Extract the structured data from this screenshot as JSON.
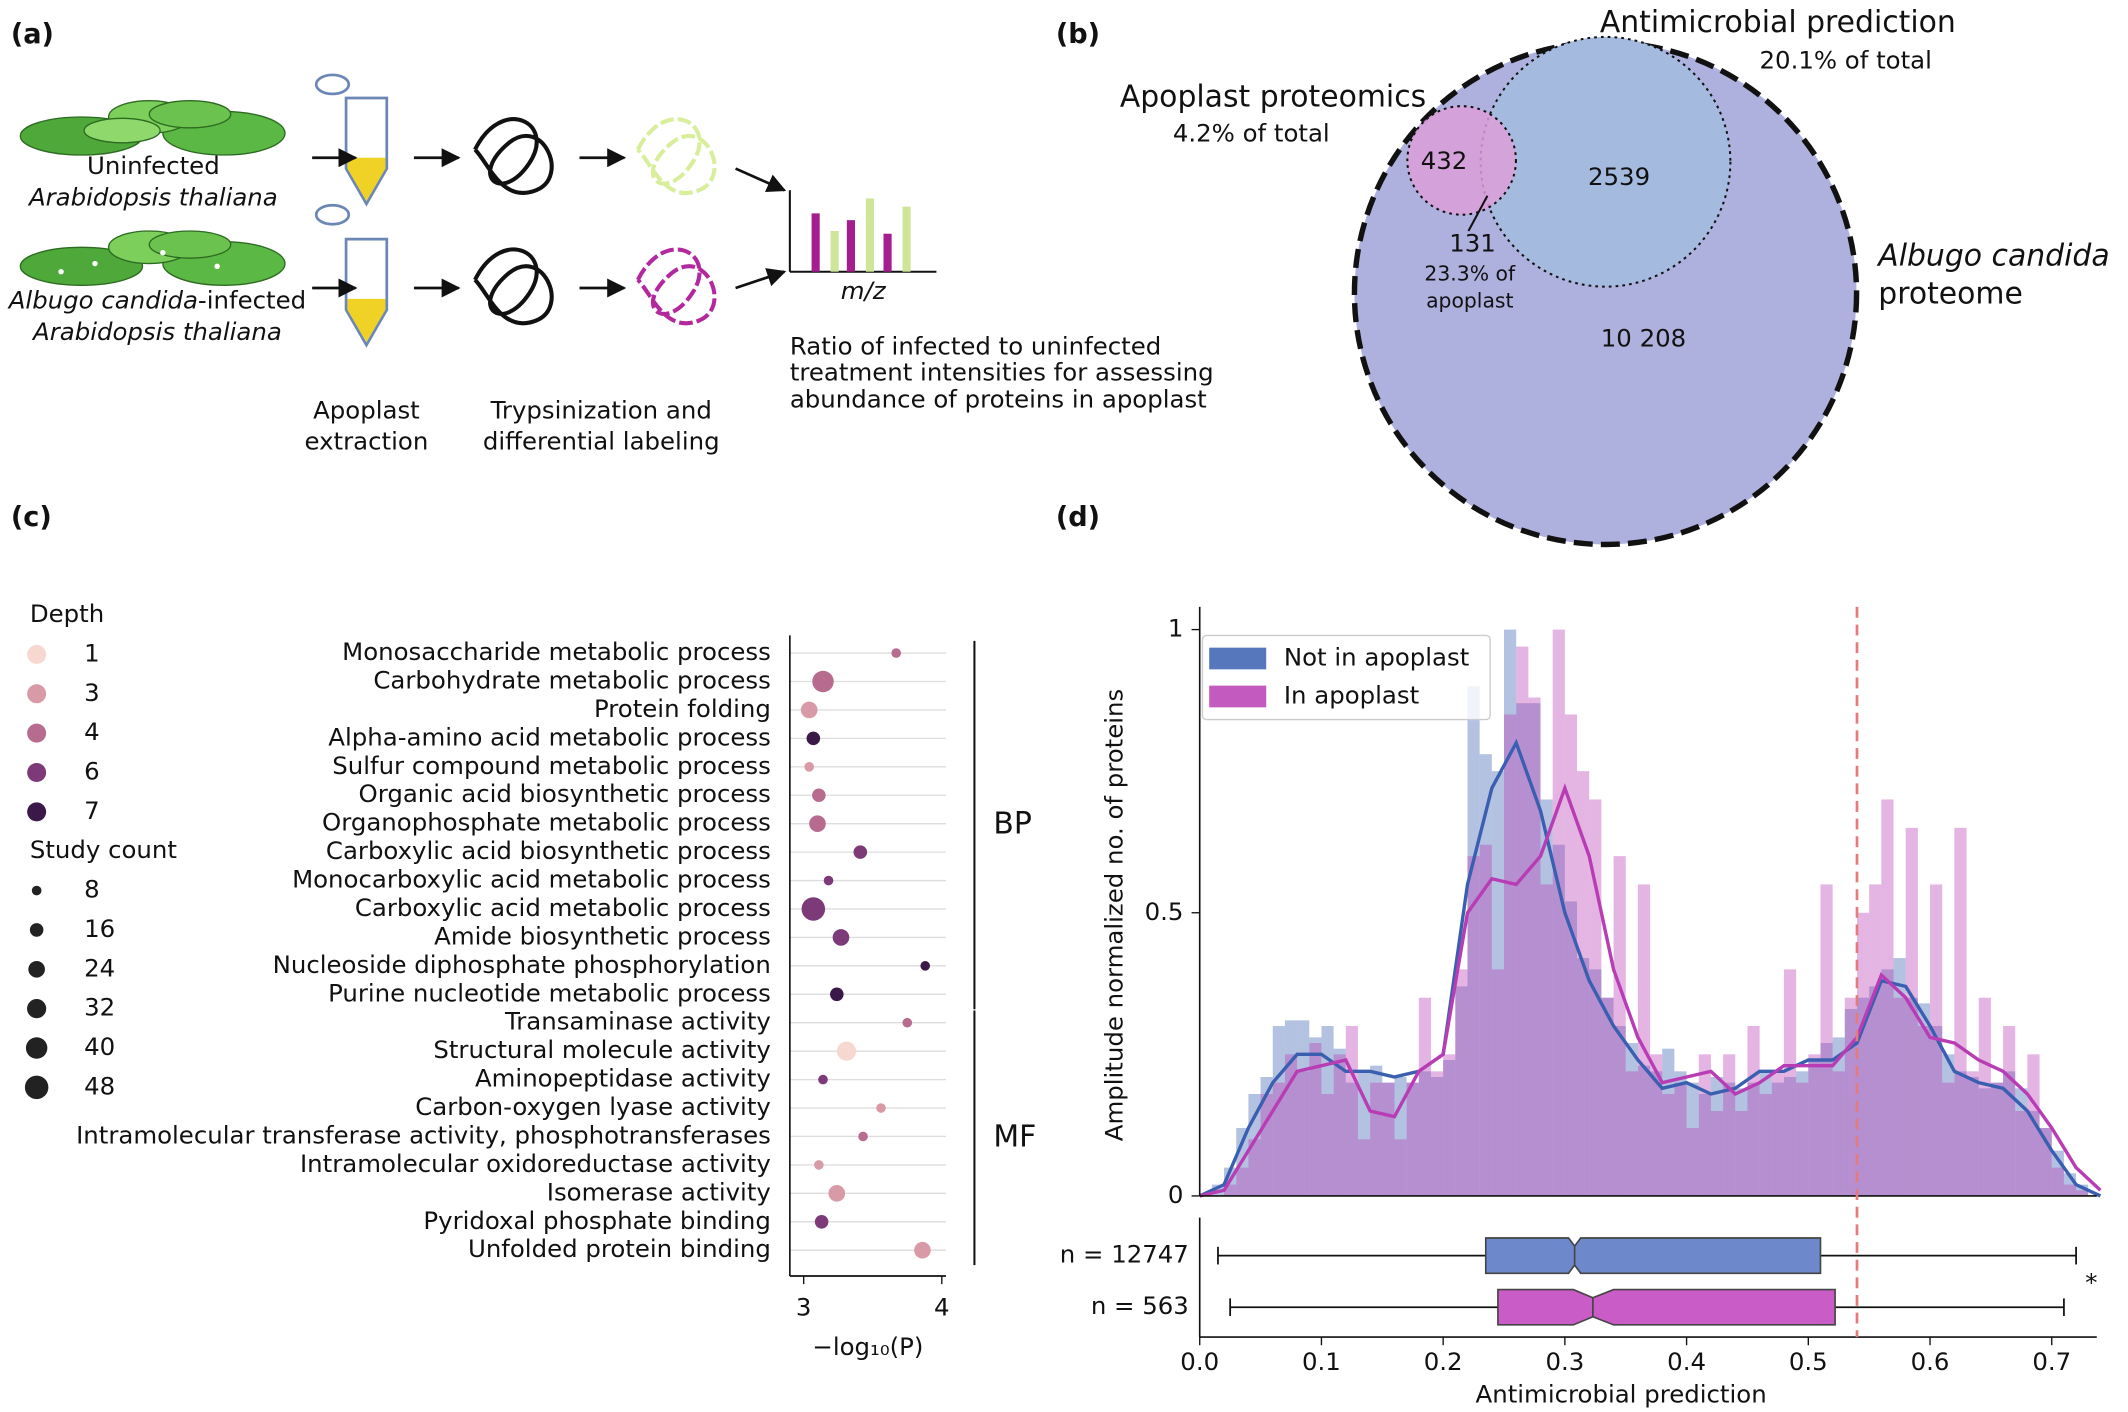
{
  "panel_labels": [
    "(a)",
    "(b)",
    "(c)",
    "(d)"
  ],
  "panel_a": {
    "uninfected": "Uninfected",
    "species": "Arabidopsis thaliana",
    "infected": {
      "italic": "Albugo candida",
      "rest": "-infected"
    },
    "species_2": "Arabidopsis thaliana",
    "step_1": [
      "Apoplast",
      "extraction"
    ],
    "step_2": [
      "Trypsinization and",
      "differential labeling"
    ],
    "axis_label": "m/z",
    "description": [
      "Ratio of infected to uninfected",
      "treatment intensities for assessing",
      "abundance of proteins in apoplast"
    ]
  },
  "panel_b": {
    "antimicrobial": "Antimicrobial prediction",
    "antimicrobial_share": "20.1% of total",
    "apoplast": "Apoplast proteomics",
    "apoplast_share": "4.2% of total",
    "apoplast_only": "432",
    "antimicrobial_only": "2539",
    "overlap": "131",
    "overlap_share": [
      "23.3% of",
      "apoplast"
    ],
    "proteome": {
      "italic": "Albugo candida",
      "rest": "proteome"
    },
    "rest": "10 208"
  },
  "chart_data": [
    {
      "type": "dot",
      "categories": [
        "Monosaccharide metabolic process",
        "Carbohydrate metabolic process",
        "Protein folding",
        "Alpha-amino acid metabolic process",
        "Sulfur compound metabolic process",
        "Organic acid biosynthetic process",
        "Organophosphate metabolic process",
        "Carboxylic acid biosynthetic process",
        "Monocarboxylic acid metabolic process",
        "Carboxylic acid metabolic process",
        "Amide biosynthetic process",
        "Nucleoside diphosphate phosphorylation",
        "Purine nucleotide metabolic process",
        "Transaminase activity",
        "Structural molecule activity",
        "Aminopeptidase activity",
        "Carbon-oxygen lyase activity",
        "Intramolecular transferase activity, phosphotransferases",
        "Intramolecular oxidoreductase activity",
        "Isomerase activity",
        "Pyridoxal phosphate binding",
        "Unfolded protein binding"
      ],
      "category_groups": [
        "BP",
        "BP",
        "BP",
        "BP",
        "BP",
        "BP",
        "BP",
        "BP",
        "BP",
        "BP",
        "BP",
        "BP",
        "BP",
        "MF",
        "MF",
        "MF",
        "MF",
        "MF",
        "MF",
        "MF",
        "MF",
        "MF"
      ],
      "values": [
        3.67,
        3.14,
        3.04,
        3.07,
        3.04,
        3.11,
        3.1,
        3.41,
        3.18,
        3.07,
        3.27,
        3.88,
        3.24,
        3.75,
        3.31,
        3.14,
        3.56,
        3.43,
        3.11,
        3.24,
        3.13,
        3.86
      ],
      "depth": [
        4,
        4,
        3,
        7,
        3,
        4,
        4,
        6,
        6,
        6,
        6,
        7,
        7,
        4,
        1,
        6,
        3,
        4,
        3,
        3,
        6,
        3
      ],
      "study_count": [
        8,
        40,
        24,
        16,
        8,
        16,
        24,
        16,
        8,
        48,
        24,
        8,
        16,
        8,
        32,
        8,
        8,
        8,
        8,
        24,
        16,
        24
      ],
      "xlabel": "−log₁₀(P)",
      "xlim": [
        2.9,
        4.03
      ],
      "xticks": [
        3,
        4
      ],
      "grid": true,
      "legend_depth": {
        "title": "Depth",
        "values": [
          1,
          3,
          4,
          6,
          7
        ],
        "colors": [
          "#f6d8d0",
          "#d89aa6",
          "#b66b8f",
          "#7c3a79",
          "#3a1848"
        ]
      },
      "legend_size": {
        "title": "Study count",
        "values": [
          8,
          16,
          24,
          32,
          40,
          48
        ],
        "color": "#222222"
      }
    },
    {
      "type": "histogram",
      "xlabel": "Antimicrobial prediction",
      "ylabel": "Amplitude normalized no. of proteins",
      "xlim": [
        0,
        0.737
      ],
      "ylim": [
        0,
        1.04
      ],
      "xticks": [
        {
          "value": 0,
          "label": "0.0"
        },
        0.1,
        0.2,
        0.3,
        0.4,
        0.5,
        0.6,
        0.7
      ],
      "yticks": [
        0,
        0.5,
        1
      ],
      "threshold": 0.54,
      "threshold_color": "#e57b7b",
      "legend": "upper left",
      "bins": [
        0.01,
        0.02,
        0.03,
        0.04,
        0.05,
        0.06,
        0.07,
        0.08,
        0.09,
        0.1,
        0.11,
        0.12,
        0.13,
        0.14,
        0.15,
        0.16,
        0.17,
        0.18,
        0.19,
        0.2,
        0.21,
        0.22,
        0.23,
        0.24,
        0.25,
        0.26,
        0.27,
        0.28,
        0.29,
        0.3,
        0.31,
        0.32,
        0.33,
        0.34,
        0.35,
        0.36,
        0.37,
        0.38,
        0.39,
        0.4,
        0.41,
        0.42,
        0.43,
        0.44,
        0.45,
        0.46,
        0.47,
        0.48,
        0.49,
        0.5,
        0.51,
        0.52,
        0.53,
        0.54,
        0.55,
        0.56,
        0.57,
        0.58,
        0.59,
        0.6,
        0.61,
        0.62,
        0.63,
        0.64,
        0.65,
        0.66,
        0.67,
        0.68,
        0.69,
        0.7,
        0.71,
        0.72,
        0.73
      ],
      "kde_x": [
        0,
        0.02,
        0.04,
        0.06,
        0.08,
        0.1,
        0.12,
        0.14,
        0.16,
        0.18,
        0.2,
        0.22,
        0.24,
        0.26,
        0.28,
        0.3,
        0.32,
        0.34,
        0.36,
        0.38,
        0.4,
        0.42,
        0.44,
        0.46,
        0.48,
        0.5,
        0.52,
        0.54,
        0.56,
        0.58,
        0.6,
        0.62,
        0.64,
        0.66,
        0.68,
        0.7,
        0.72,
        0.74
      ],
      "series": [
        {
          "name": "Not in apoplast",
          "color": "#3a5fb0",
          "box_color": "#6d88cb",
          "counts": [
            0.02,
            0.05,
            0.12,
            0.18,
            0.21,
            0.3,
            0.31,
            0.31,
            0.28,
            0.3,
            0.26,
            0.2,
            0.22,
            0.23,
            0.2,
            0.21,
            0.2,
            0.22,
            0.21,
            0.24,
            0.37,
            0.9,
            0.78,
            0.75,
            1.0,
            0.87,
            0.87,
            0.7,
            0.62,
            0.52,
            0.42,
            0.4,
            0.35,
            0.3,
            0.27,
            0.23,
            0.22,
            0.26,
            0.22,
            0.2,
            0.18,
            0.21,
            0.2,
            0.19,
            0.2,
            0.22,
            0.2,
            0.21,
            0.22,
            0.24,
            0.27,
            0.28,
            0.33,
            0.35,
            0.37,
            0.4,
            0.42,
            0.35,
            0.34,
            0.3,
            0.25,
            0.22,
            0.21,
            0.19,
            0.2,
            0.22,
            0.19,
            0.15,
            0.12,
            0.08,
            0.04,
            0.02
          ],
          "kde": [
            0,
            0.02,
            0.12,
            0.2,
            0.25,
            0.25,
            0.22,
            0.22,
            0.21,
            0.22,
            0.25,
            0.55,
            0.72,
            0.8,
            0.68,
            0.5,
            0.38,
            0.3,
            0.24,
            0.19,
            0.2,
            0.18,
            0.19,
            0.22,
            0.22,
            0.24,
            0.24,
            0.27,
            0.38,
            0.37,
            0.3,
            0.22,
            0.2,
            0.19,
            0.15,
            0.08,
            0.02,
            0
          ],
          "box": {
            "label": "n = 12747",
            "whislo": 0.015,
            "q1": 0.235,
            "notch_low": 0.303,
            "med": 0.308,
            "notch_high": 0.313,
            "q3": 0.51,
            "whishi": 0.72
          }
        },
        {
          "name": "In apoplast",
          "color": "#b83db5",
          "box_color": "#c95cc6",
          "counts": [
            0,
            0.02,
            0.05,
            0.1,
            0.18,
            0.2,
            0.25,
            0.22,
            0.27,
            0.18,
            0.25,
            0.3,
            0.1,
            0.2,
            0.2,
            0.1,
            0.2,
            0.35,
            0.22,
            0.25,
            0.4,
            0.6,
            0.62,
            0.4,
            0.85,
            0.97,
            0.88,
            0.55,
            1.0,
            0.85,
            0.75,
            0.7,
            0.35,
            0.6,
            0.22,
            0.55,
            0.25,
            0.18,
            0.2,
            0.12,
            0.25,
            0.15,
            0.25,
            0.15,
            0.3,
            0.18,
            0.22,
            0.4,
            0.2,
            0.25,
            0.55,
            0.22,
            0.35,
            0.5,
            0.55,
            0.7,
            0.35,
            0.65,
            0.3,
            0.55,
            0.2,
            0.65,
            0.22,
            0.35,
            0.2,
            0.3,
            0.15,
            0.25,
            0.12,
            0.05,
            0.02,
            0.01
          ],
          "kde": [
            0,
            0.01,
            0.08,
            0.15,
            0.22,
            0.23,
            0.24,
            0.15,
            0.14,
            0.22,
            0.25,
            0.5,
            0.56,
            0.55,
            0.6,
            0.72,
            0.6,
            0.4,
            0.28,
            0.2,
            0.21,
            0.22,
            0.18,
            0.2,
            0.23,
            0.23,
            0.23,
            0.28,
            0.39,
            0.35,
            0.28,
            0.27,
            0.24,
            0.22,
            0.18,
            0.12,
            0.05,
            0.01
          ],
          "box": {
            "label": "n = 563",
            "whislo": 0.025,
            "q1": 0.245,
            "notch_low": 0.307,
            "med": 0.323,
            "notch_high": 0.34,
            "q3": 0.522,
            "whishi": 0.71
          }
        }
      ],
      "significance": "*"
    }
  ]
}
